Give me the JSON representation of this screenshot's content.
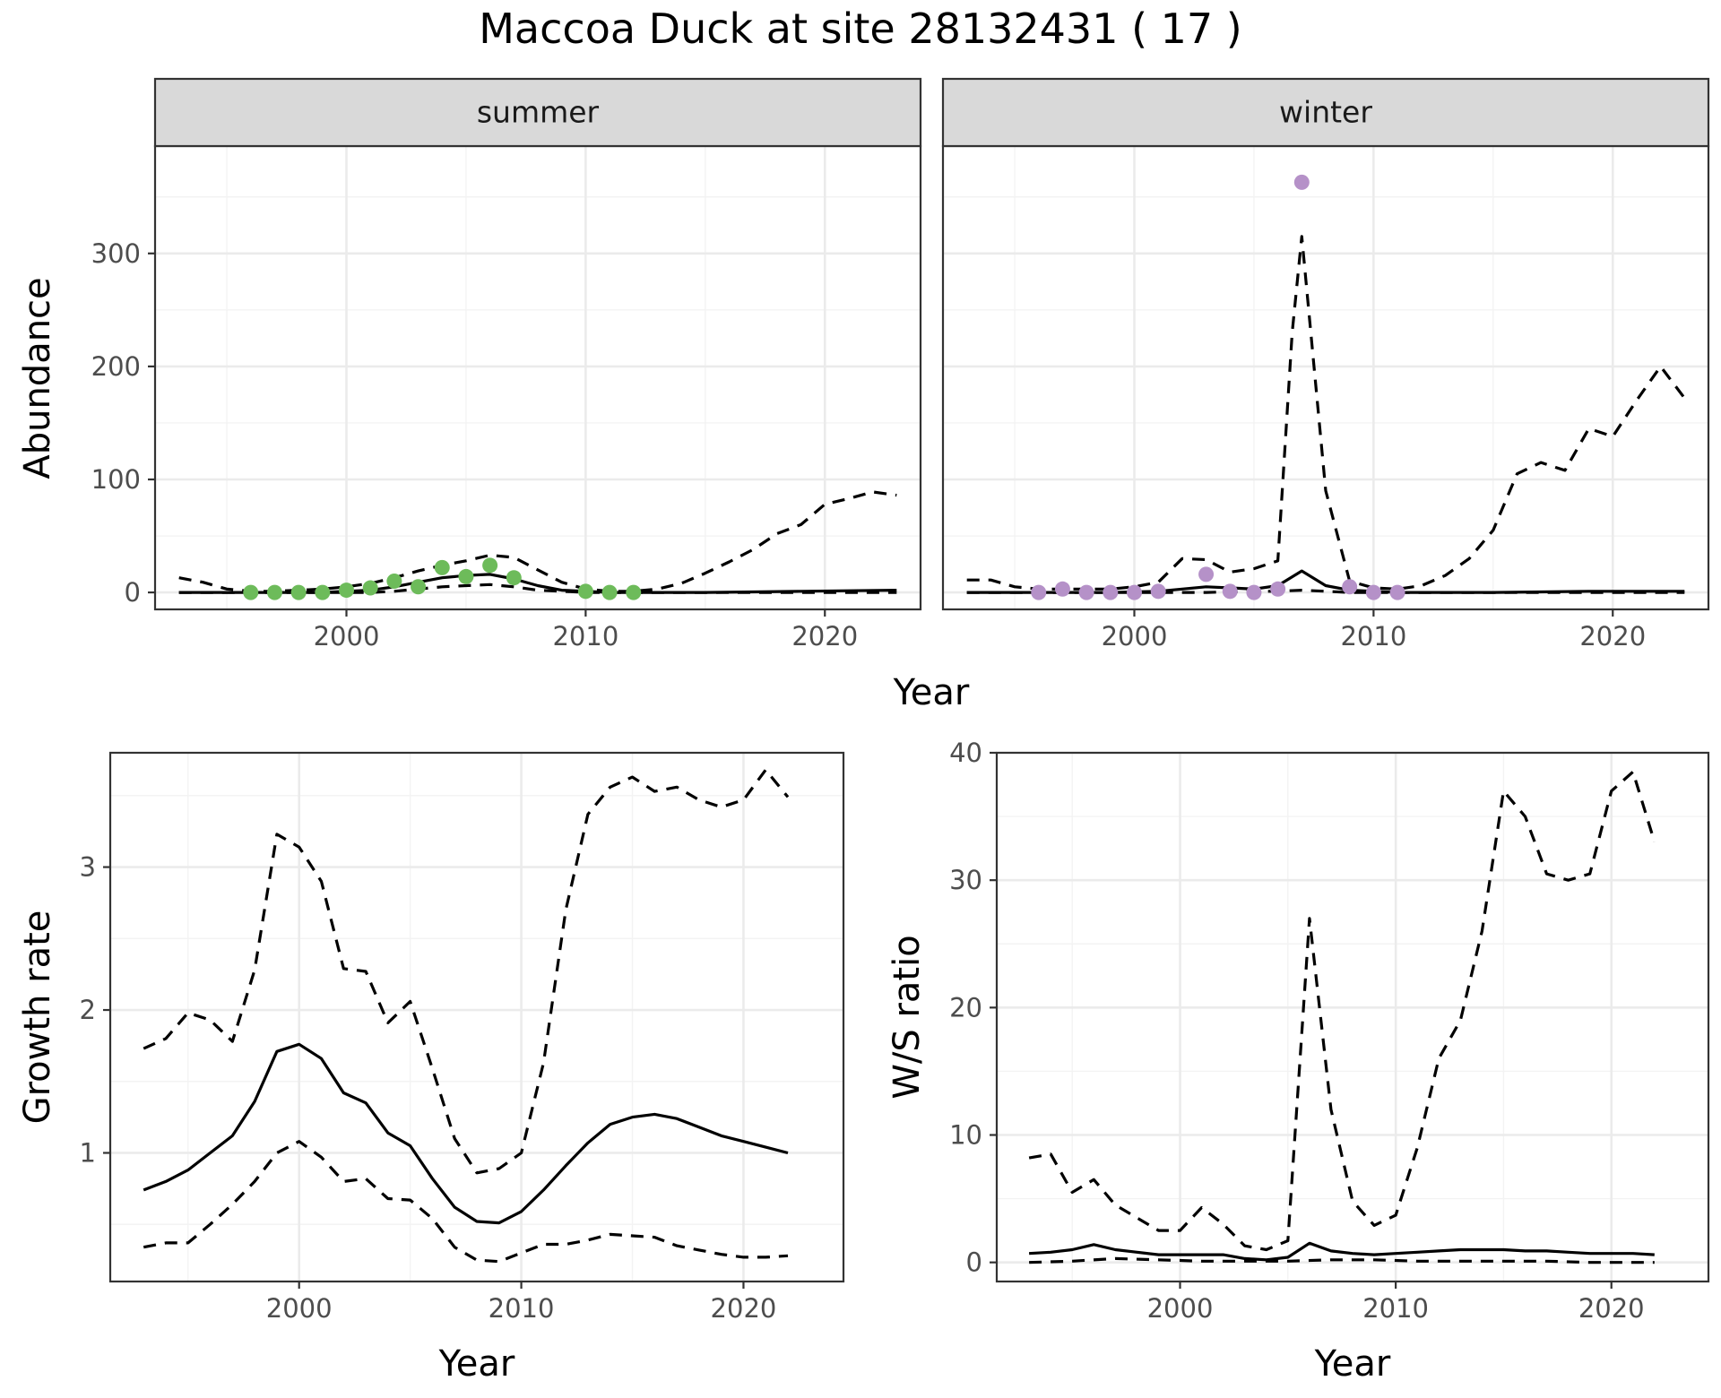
{
  "title": "Maccoa Duck at site 28132431 ( 17 )",
  "colors": {
    "summer": "#6dbb5a",
    "winter": "#b591c8"
  },
  "chart_data": [
    {
      "type": "line",
      "facet": "summer",
      "xlabel": "Year",
      "ylabel": "Abundance",
      "xlim": [
        1992,
        2024
      ],
      "ylim": [
        -15,
        395
      ],
      "xticks": [
        2000,
        2010,
        2020
      ],
      "yticks": [
        0,
        100,
        200,
        300
      ],
      "series": [
        {
          "role": "mean",
          "x": [
            1993,
            1995,
            1997,
            1999,
            2000,
            2001,
            2002,
            2003,
            2004,
            2005,
            2006,
            2007,
            2008,
            2009,
            2010,
            2011,
            2012,
            2013,
            2015,
            2017,
            2019,
            2021,
            2023
          ],
          "y": [
            0,
            0,
            0,
            0,
            1,
            2,
            5,
            9,
            13,
            15,
            16,
            12,
            6,
            2,
            1,
            0,
            0,
            0,
            0,
            0.5,
            1,
            1.5,
            2
          ]
        },
        {
          "role": "upper",
          "x": [
            1993,
            1994,
            1995,
            1996,
            1997,
            1998,
            1999,
            2000,
            2001,
            2002,
            2003,
            2004,
            2005,
            2006,
            2007,
            2008,
            2009,
            2010,
            2011,
            2012,
            2013,
            2014,
            2015,
            2016,
            2017,
            2018,
            2019,
            2020,
            2021,
            2022,
            2023
          ],
          "y": [
            13,
            9,
            3,
            1,
            1,
            2,
            3,
            5,
            8,
            13,
            19,
            24,
            28,
            33,
            31,
            20,
            9,
            3,
            1,
            1,
            3,
            8,
            17,
            27,
            38,
            52,
            60,
            78,
            83,
            89,
            86
          ]
        },
        {
          "role": "lower",
          "x": [
            1993,
            1995,
            1997,
            1999,
            2000,
            2001,
            2002,
            2003,
            2004,
            2005,
            2006,
            2007,
            2008,
            2009,
            2010,
            2011,
            2013,
            2015,
            2017,
            2019,
            2021,
            2023
          ],
          "y": [
            0,
            0,
            0,
            0,
            0,
            0,
            1,
            3,
            5,
            6,
            7,
            5,
            2,
            1,
            0,
            0,
            0,
            0,
            0,
            0,
            0,
            0
          ]
        }
      ],
      "points": {
        "x": [
          1996,
          1997,
          1998,
          1999,
          2000,
          2001,
          2002,
          2003,
          2004,
          2005,
          2006,
          2007,
          2010,
          2011,
          2012
        ],
        "y": [
          0,
          0,
          0,
          0,
          2,
          4,
          10,
          5,
          22,
          14,
          24,
          13,
          1,
          0,
          0
        ]
      }
    },
    {
      "type": "line",
      "facet": "winter",
      "xlabel": "Year",
      "ylabel": "Abundance",
      "xlim": [
        1992,
        2024
      ],
      "ylim": [
        -15,
        395
      ],
      "xticks": [
        2000,
        2010,
        2020
      ],
      "yticks": [
        0,
        100,
        200,
        300
      ],
      "series": [
        {
          "role": "mean",
          "x": [
            1993,
            1995,
            1997,
            1999,
            2001,
            2002,
            2003,
            2004,
            2005,
            2006,
            2007,
            2008,
            2009,
            2010,
            2011,
            2013,
            2015,
            2017,
            2019,
            2021,
            2023
          ],
          "y": [
            0,
            0,
            0,
            0,
            1,
            3,
            5,
            4,
            3,
            6,
            19,
            6,
            2,
            1,
            0,
            0,
            0,
            0.5,
            1,
            1,
            1
          ]
        },
        {
          "role": "upper",
          "x": [
            1993,
            1994,
            1995,
            1996,
            1997,
            1998,
            1999,
            2000,
            2001,
            2002,
            2003,
            2004,
            2005,
            2006,
            2006.6,
            2007,
            2008,
            2009,
            2010,
            2011,
            2012,
            2013,
            2014,
            2015,
            2016,
            2017,
            2018,
            2019,
            2020,
            2021,
            2022,
            2023
          ],
          "y": [
            11,
            11,
            5,
            3,
            3,
            3,
            3,
            5,
            9,
            30,
            29,
            18,
            21,
            28,
            230,
            315,
            90,
            10,
            4,
            3,
            6,
            15,
            30,
            55,
            105,
            115,
            108,
            145,
            138,
            170,
            200,
            172
          ]
        },
        {
          "role": "lower",
          "x": [
            1993,
            1995,
            1997,
            1999,
            2001,
            2003,
            2005,
            2006,
            2007,
            2008,
            2009,
            2011,
            2013,
            2015,
            2017,
            2019,
            2021,
            2023
          ],
          "y": [
            0,
            0,
            0,
            0,
            0,
            0,
            1,
            1,
            2,
            1,
            0,
            0,
            0,
            0,
            0,
            0,
            0,
            0
          ]
        }
      ],
      "points": {
        "x": [
          1996,
          1997,
          1998,
          1999,
          2000,
          2001,
          2003,
          2004,
          2005,
          2006,
          2007,
          2009,
          2010,
          2011
        ],
        "y": [
          0,
          3,
          0,
          0,
          0,
          1,
          16,
          1,
          0,
          3,
          363,
          5,
          0,
          0
        ]
      }
    },
    {
      "type": "line",
      "xlabel": "Year",
      "ylabel": "Growth rate",
      "xlim": [
        1991.5,
        2024.5
      ],
      "ylim": [
        0.1,
        3.8
      ],
      "xticks": [
        2000,
        2010,
        2020
      ],
      "yticks": [
        1,
        2,
        3
      ],
      "series": [
        {
          "role": "mean",
          "x": [
            1993,
            1994,
            1995,
            1996,
            1997,
            1998,
            1999,
            2000,
            2001,
            2002,
            2003,
            2004,
            2005,
            2006,
            2007,
            2008,
            2009,
            2010,
            2011,
            2012,
            2013,
            2014,
            2015,
            2016,
            2017,
            2018,
            2019,
            2020,
            2021,
            2022
          ],
          "y": [
            0.74,
            0.8,
            0.88,
            1.0,
            1.12,
            1.36,
            1.71,
            1.76,
            1.66,
            1.42,
            1.35,
            1.14,
            1.05,
            0.82,
            0.62,
            0.52,
            0.51,
            0.59,
            0.74,
            0.91,
            1.07,
            1.2,
            1.25,
            1.27,
            1.24,
            1.18,
            1.12,
            1.08,
            1.04,
            1.0
          ]
        },
        {
          "role": "upper",
          "x": [
            1993,
            1994,
            1995,
            1996,
            1997,
            1998,
            1999,
            2000,
            2001,
            2002,
            2003,
            2004,
            2005,
            2006,
            2007,
            2008,
            2009,
            2010,
            2011,
            2012,
            2013,
            2014,
            2015,
            2016,
            2017,
            2018,
            2019,
            2020,
            2021,
            2022
          ],
          "y": [
            1.73,
            1.8,
            1.98,
            1.93,
            1.78,
            2.28,
            3.23,
            3.14,
            2.9,
            2.29,
            2.27,
            1.91,
            2.06,
            1.59,
            1.1,
            0.86,
            0.89,
            1.0,
            1.63,
            2.7,
            3.37,
            3.56,
            3.63,
            3.53,
            3.56,
            3.47,
            3.42,
            3.47,
            3.68,
            3.49
          ]
        },
        {
          "role": "lower",
          "x": [
            1993,
            1994,
            1995,
            1996,
            1997,
            1998,
            1999,
            2000,
            2001,
            2002,
            2003,
            2004,
            2005,
            2006,
            2007,
            2008,
            2009,
            2010,
            2011,
            2012,
            2013,
            2014,
            2015,
            2016,
            2017,
            2018,
            2019,
            2020,
            2021,
            2022
          ],
          "y": [
            0.34,
            0.37,
            0.37,
            0.5,
            0.64,
            0.8,
            1.0,
            1.08,
            0.97,
            0.8,
            0.82,
            0.68,
            0.67,
            0.54,
            0.34,
            0.25,
            0.24,
            0.3,
            0.36,
            0.36,
            0.39,
            0.43,
            0.42,
            0.41,
            0.35,
            0.32,
            0.29,
            0.27,
            0.27,
            0.28
          ]
        }
      ]
    },
    {
      "type": "line",
      "xlabel": "Year",
      "ylabel": "W/S ratio",
      "xlim": [
        1991.5,
        2024.5
      ],
      "ylim": [
        -1.5,
        40
      ],
      "xticks": [
        2000,
        2010,
        2020
      ],
      "yticks": [
        0,
        10,
        20,
        30,
        40
      ],
      "series": [
        {
          "role": "mean",
          "x": [
            1993,
            1994,
            1995,
            1996,
            1997,
            1998,
            1999,
            2000,
            2001,
            2002,
            2003,
            2004,
            2005,
            2006,
            2007,
            2008,
            2009,
            2010,
            2011,
            2012,
            2013,
            2014,
            2015,
            2016,
            2017,
            2018,
            2019,
            2020,
            2021,
            2022
          ],
          "y": [
            0.7,
            0.8,
            1.0,
            1.4,
            1.0,
            0.8,
            0.6,
            0.6,
            0.6,
            0.6,
            0.3,
            0.2,
            0.4,
            1.5,
            0.9,
            0.7,
            0.6,
            0.7,
            0.8,
            0.9,
            1.0,
            1.0,
            1.0,
            0.9,
            0.9,
            0.8,
            0.7,
            0.7,
            0.7,
            0.6
          ]
        },
        {
          "role": "upper",
          "x": [
            1993,
            1994,
            1995,
            1996,
            1997,
            1998,
            1999,
            2000,
            2001,
            2002,
            2003,
            2004,
            2005,
            2006,
            2007,
            2008,
            2009,
            2010,
            2011,
            2012,
            2013,
            2014,
            2015,
            2016,
            2017,
            2018,
            2019,
            2020,
            2021,
            2022
          ],
          "y": [
            8.2,
            8.5,
            5.5,
            6.5,
            4.5,
            3.5,
            2.5,
            2.5,
            4.3,
            3.0,
            1.3,
            1.0,
            1.7,
            27.0,
            12.0,
            4.8,
            2.9,
            3.7,
            9.0,
            16.0,
            19.0,
            26.0,
            37.0,
            35.0,
            30.5,
            30.0,
            30.5,
            37.0,
            38.5,
            33.0
          ]
        },
        {
          "role": "lower",
          "x": [
            1993,
            1995,
            1997,
            1999,
            2001,
            2003,
            2005,
            2007,
            2009,
            2011,
            2013,
            2015,
            2017,
            2019,
            2021,
            2022
          ],
          "y": [
            0,
            0.1,
            0.3,
            0.2,
            0.1,
            0.1,
            0.1,
            0.2,
            0.2,
            0.1,
            0.1,
            0.1,
            0.1,
            0,
            0,
            0
          ]
        }
      ]
    }
  ]
}
